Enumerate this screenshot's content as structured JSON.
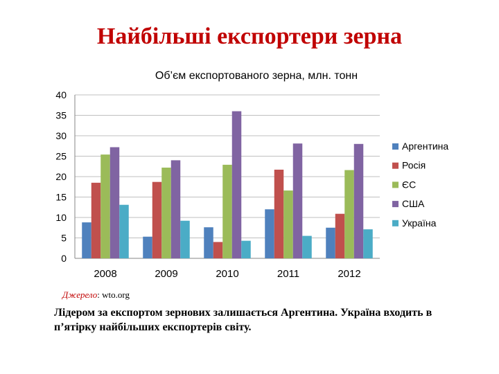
{
  "slide": {
    "title": "Найбільші експортери зерна",
    "source_label": "Джерело",
    "source_value": ": wto.org",
    "caption": "Лідером за експортом зернових залишається Аргентина. Україна входить в п’ятірку найбільших експортерів світу."
  },
  "chart_data": {
    "type": "bar",
    "title": "Об’єм експортованого зерна, млн. тонн",
    "categories": [
      "2008",
      "2009",
      "2010",
      "2011",
      "2012"
    ],
    "series": [
      {
        "name": "Аргентина",
        "color": "#4f81bd",
        "values": [
          8.8,
          5.3,
          7.6,
          12.0,
          7.5
        ]
      },
      {
        "name": "Росія",
        "color": "#c0504d",
        "values": [
          18.5,
          18.7,
          4.0,
          21.7,
          10.9
        ]
      },
      {
        "name": "ЄС",
        "color": "#9bbb59",
        "values": [
          25.4,
          22.2,
          22.9,
          16.6,
          21.6
        ]
      },
      {
        "name": "США",
        "color": "#8064a2",
        "values": [
          27.2,
          24.0,
          36.0,
          28.1,
          28.0
        ]
      },
      {
        "name": "Україна",
        "color": "#4bacc6",
        "values": [
          13.1,
          9.2,
          4.3,
          5.5,
          7.1
        ]
      }
    ],
    "ylim": [
      0,
      40
    ],
    "yticks": [
      "0",
      "5",
      "10",
      "15",
      "20",
      "25",
      "30",
      "35",
      "40"
    ],
    "grid": true,
    "legend": "right"
  }
}
